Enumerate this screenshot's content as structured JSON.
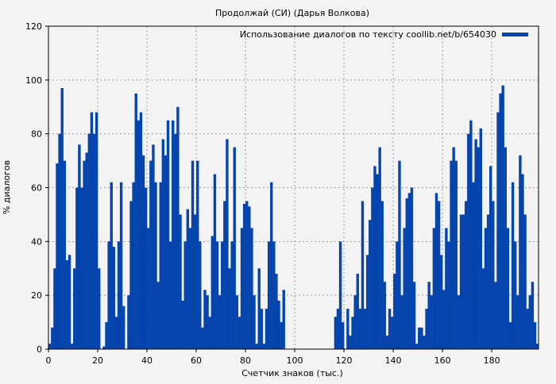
{
  "chart_data": {
    "type": "bar",
    "title": "Продолжай (СИ) (Дарья Волкова)",
    "xlabel": "Счетчик знаков (тыс.)",
    "ylabel": "% диалогов",
    "xlim": [
      0,
      199
    ],
    "ylim": [
      0,
      120
    ],
    "xticks": [
      0,
      20,
      40,
      60,
      80,
      100,
      120,
      140,
      160,
      180
    ],
    "yticks": [
      0,
      20,
      40,
      60,
      80,
      100,
      120
    ],
    "grid": true,
    "legend": {
      "label": "Использование диалогов по тексту coollib.net/b/654030",
      "placement": "top-right"
    },
    "color": "#0645ad",
    "bin_width": 1,
    "values": [
      2,
      8,
      30,
      69,
      80,
      97,
      70,
      33,
      35,
      2,
      30,
      60,
      76,
      60,
      70,
      73,
      80,
      88,
      80,
      88,
      30,
      0,
      1,
      10,
      40,
      62,
      38,
      12,
      40,
      62,
      16,
      0,
      20,
      55,
      62,
      95,
      85,
      88,
      72,
      60,
      45,
      70,
      76,
      62,
      25,
      62,
      78,
      72,
      85,
      40,
      85,
      80,
      90,
      50,
      18,
      40,
      52,
      45,
      70,
      50,
      70,
      40,
      8,
      22,
      20,
      12,
      42,
      65,
      40,
      20,
      40,
      55,
      78,
      30,
      40,
      75,
      20,
      12,
      45,
      54,
      55,
      53,
      45,
      20,
      2,
      30,
      15,
      2,
      15,
      40,
      62,
      40,
      28,
      18,
      10,
      22,
      0,
      0,
      0,
      0,
      0,
      0,
      0,
      0,
      0,
      0,
      0,
      0,
      0,
      0,
      0,
      0,
      0,
      0,
      0,
      0,
      12,
      15,
      40,
      10,
      0,
      15,
      5,
      12,
      20,
      28,
      15,
      55,
      15,
      35,
      48,
      60,
      68,
      65,
      75,
      55,
      25,
      5,
      15,
      12,
      28,
      40,
      70,
      20,
      45,
      56,
      58,
      60,
      25,
      2,
      8,
      8,
      5,
      15,
      25,
      20,
      45,
      58,
      55,
      35,
      22,
      45,
      40,
      70,
      75,
      70,
      20,
      50,
      50,
      55,
      80,
      85,
      62,
      78,
      75,
      82,
      30,
      45,
      50,
      68,
      55,
      25,
      88,
      95,
      98,
      75,
      45,
      10,
      62,
      40,
      20,
      72,
      65,
      50,
      15,
      20,
      25,
      10,
      2
    ]
  }
}
